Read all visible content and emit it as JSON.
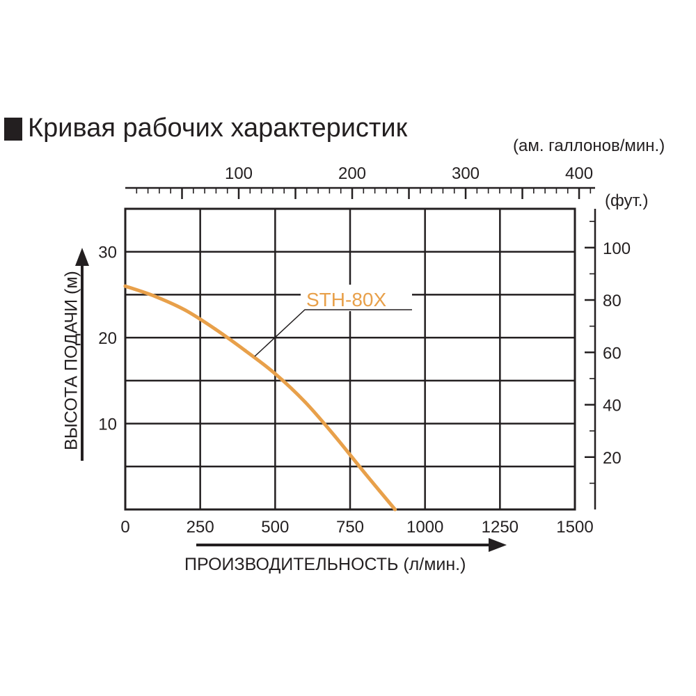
{
  "title": "Кривая рабочих характеристик",
  "top_axis_unit": "(ам. галлонов/мин.)",
  "right_axis_unit": "(фут.)",
  "chart_data": {
    "type": "line",
    "title": "Кривая рабочих характеристик",
    "xlabel": "ПРОИЗВОДИТЕЛЬНОСТЬ (л/мин.)",
    "ylabel": "ВЫСОТА ПОДАЧИ (м)",
    "xlim": [
      0,
      1500
    ],
    "ylim": [
      0,
      35
    ],
    "x_ticks": [
      0,
      250,
      500,
      750,
      1000,
      1250,
      1500
    ],
    "x_tick_labels": [
      "0",
      "250",
      "500",
      "750",
      "1000",
      "1250",
      "1500"
    ],
    "y_ticks": [
      10,
      20,
      30
    ],
    "y_tick_labels": [
      "10",
      "20",
      "30"
    ],
    "secondary_x": {
      "unit_label": "(ам. галлонов/мин.)",
      "ticks": [
        100,
        200,
        300,
        400
      ],
      "tick_labels": [
        "100",
        "200",
        "300",
        "400"
      ]
    },
    "secondary_y": {
      "unit_label": "(фут.)",
      "ticks": [
        20,
        40,
        60,
        80,
        100
      ],
      "tick_labels": [
        "20",
        "40",
        "60",
        "80",
        "100"
      ]
    },
    "grid": true,
    "series": [
      {
        "name": "STH-80X",
        "color": "#e8a04a",
        "x": [
          0,
          100,
          200,
          300,
          400,
          500,
          600,
          700,
          800,
          900
        ],
        "y": [
          26.0,
          24.8,
          23.2,
          21.0,
          18.5,
          15.8,
          12.5,
          8.5,
          4.2,
          0
        ]
      }
    ]
  }
}
